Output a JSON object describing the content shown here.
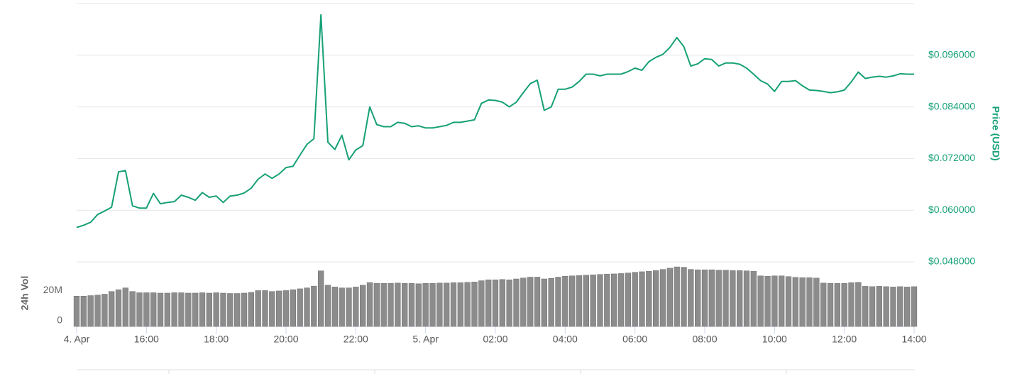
{
  "chart_data": [
    {
      "type": "line",
      "y_label": "Price (USD)",
      "xlim": [
        0,
        24
      ],
      "x": [
        0,
        0.2,
        0.4,
        0.6,
        0.8,
        1,
        1.2,
        1.4,
        1.6,
        1.8,
        2,
        2.2,
        2.4,
        2.6,
        2.8,
        3,
        3.2,
        3.4,
        3.6,
        3.8,
        4,
        4.2,
        4.4,
        4.6,
        4.8,
        5,
        5.2,
        5.4,
        5.6,
        5.8,
        6,
        6.2,
        6.4,
        6.6,
        6.8,
        7,
        7.2,
        7.4,
        7.6,
        7.8,
        8,
        8.2,
        8.4,
        8.6,
        8.8,
        9,
        9.2,
        9.4,
        9.6,
        9.8,
        10,
        10.2,
        10.4,
        10.6,
        10.8,
        11,
        11.2,
        11.4,
        11.6,
        11.8,
        12,
        12.2,
        12.4,
        12.6,
        12.8,
        13,
        13.2,
        13.4,
        13.6,
        13.8,
        14,
        14.2,
        14.4,
        14.6,
        14.8,
        15,
        15.2,
        15.4,
        15.6,
        15.8,
        16,
        16.2,
        16.4,
        16.6,
        16.8,
        17,
        17.2,
        17.4,
        17.6,
        17.8,
        18,
        18.2,
        18.4,
        18.6,
        18.8,
        19,
        19.2,
        19.4,
        19.6,
        19.8,
        20,
        20.2,
        20.4,
        20.6,
        20.8,
        21,
        21.2,
        21.4,
        21.6,
        21.8,
        22,
        22.2,
        22.4,
        22.6,
        22.8,
        23,
        23.2,
        23.4,
        23.6,
        23.8,
        24
      ],
      "series": [
        {
          "name": "Price",
          "color": "#16a076",
          "values": [
            0.056,
            0.0565,
            0.0572,
            0.059,
            0.0598,
            0.0607,
            0.0689,
            0.0692,
            0.061,
            0.0605,
            0.0605,
            0.0639,
            0.0615,
            0.0618,
            0.062,
            0.0635,
            0.063,
            0.0623,
            0.0641,
            0.063,
            0.0633,
            0.0618,
            0.0633,
            0.0635,
            0.064,
            0.0651,
            0.0672,
            0.0684,
            0.0674,
            0.0684,
            0.0699,
            0.0702,
            0.0728,
            0.0753,
            0.0766,
            0.1054,
            0.0758,
            0.0741,
            0.0774,
            0.0717,
            0.074,
            0.075,
            0.084,
            0.0799,
            0.0794,
            0.0794,
            0.0804,
            0.0802,
            0.0794,
            0.0796,
            0.0791,
            0.0791,
            0.0794,
            0.0797,
            0.0804,
            0.0804,
            0.0807,
            0.081,
            0.0848,
            0.0856,
            0.0855,
            0.0851,
            0.084,
            0.0851,
            0.0873,
            0.0894,
            0.0902,
            0.0832,
            0.084,
            0.0881,
            0.0881,
            0.0886,
            0.0899,
            0.0916,
            0.0916,
            0.0912,
            0.0916,
            0.0916,
            0.0916,
            0.0922,
            0.093,
            0.0925,
            0.0945,
            0.0955,
            0.0962,
            0.0978,
            0.1001,
            0.098,
            0.0935,
            0.094,
            0.0952,
            0.095,
            0.0935,
            0.0942,
            0.0942,
            0.0939,
            0.093,
            0.0916,
            0.0901,
            0.0893,
            0.0876,
            0.0899,
            0.0899,
            0.0901,
            0.0889,
            0.0879,
            0.0878,
            0.0876,
            0.0873,
            0.0875,
            0.0879,
            0.0898,
            0.0921,
            0.0906,
            0.0909,
            0.0911,
            0.0909,
            0.0912,
            0.0917,
            0.0916,
            0.0916
          ]
        }
      ],
      "ylim": [
        0.048,
        0.108
      ],
      "yticks": [
        {
          "value": 0.048,
          "label": "$0.048000"
        },
        {
          "value": 0.06,
          "label": "$0.060000"
        },
        {
          "value": 0.072,
          "label": "$0.072000"
        },
        {
          "value": 0.084,
          "label": "$0.084000"
        },
        {
          "value": 0.096,
          "label": "$0.096000"
        }
      ],
      "grid": true
    },
    {
      "type": "bar",
      "y_label": "24h Vol",
      "xlim": [
        0,
        24
      ],
      "x": [
        0,
        0.2,
        0.4,
        0.6,
        0.8,
        1,
        1.2,
        1.4,
        1.6,
        1.8,
        2,
        2.2,
        2.4,
        2.6,
        2.8,
        3,
        3.2,
        3.4,
        3.6,
        3.8,
        4,
        4.2,
        4.4,
        4.6,
        4.8,
        5,
        5.2,
        5.4,
        5.6,
        5.8,
        6,
        6.2,
        6.4,
        6.6,
        6.8,
        7,
        7.2,
        7.4,
        7.6,
        7.8,
        8,
        8.2,
        8.4,
        8.6,
        8.8,
        9,
        9.2,
        9.4,
        9.6,
        9.8,
        10,
        10.2,
        10.4,
        10.6,
        10.8,
        11,
        11.2,
        11.4,
        11.6,
        11.8,
        12,
        12.2,
        12.4,
        12.6,
        12.8,
        13,
        13.2,
        13.4,
        13.6,
        13.8,
        14,
        14.2,
        14.4,
        14.6,
        14.8,
        15,
        15.2,
        15.4,
        15.6,
        15.8,
        16,
        16.2,
        16.4,
        16.6,
        16.8,
        17,
        17.2,
        17.4,
        17.6,
        17.8,
        18,
        18.2,
        18.4,
        18.6,
        18.8,
        19,
        19.2,
        19.4,
        19.6,
        19.8,
        20,
        20.2,
        20.4,
        20.6,
        20.8,
        21,
        21.2,
        21.4,
        21.6,
        21.8,
        22,
        22.2,
        22.4,
        22.6,
        22.8,
        23,
        23.2,
        23.4,
        23.6,
        23.8,
        24
      ],
      "series": [
        {
          "name": "24h Vol",
          "color": "#8c8c8c",
          "values": [
            16900000,
            16900000,
            17200000,
            17500000,
            18000000,
            19500000,
            20500000,
            21500000,
            19500000,
            18800000,
            18800000,
            18800000,
            18600000,
            18600000,
            18800000,
            18800000,
            18600000,
            18600000,
            18800000,
            18600000,
            18800000,
            18600000,
            18400000,
            18400000,
            18600000,
            19000000,
            20000000,
            20000000,
            19500000,
            19800000,
            20000000,
            20500000,
            21000000,
            21500000,
            22500000,
            31000000,
            23000000,
            22000000,
            21500000,
            21500000,
            22000000,
            23000000,
            24500000,
            24000000,
            24000000,
            24000000,
            24200000,
            24000000,
            24000000,
            23800000,
            24000000,
            24000000,
            24200000,
            24200000,
            24400000,
            24400000,
            24600000,
            24800000,
            25500000,
            26000000,
            26000000,
            26200000,
            26000000,
            26500000,
            27000000,
            27500000,
            27500000,
            26500000,
            26800000,
            27500000,
            28000000,
            28200000,
            28400000,
            28600000,
            28800000,
            29000000,
            29200000,
            29300000,
            29500000,
            29800000,
            30200000,
            30500000,
            30800000,
            31200000,
            31800000,
            32500000,
            33200000,
            33000000,
            31800000,
            31600000,
            31600000,
            31600000,
            31400000,
            31400000,
            31200000,
            31200000,
            31000000,
            30800000,
            28200000,
            28000000,
            28200000,
            28200000,
            27800000,
            27400000,
            27200000,
            27200000,
            27000000,
            24200000,
            24000000,
            24000000,
            24000000,
            24400000,
            24600000,
            22400000,
            22200000,
            22400000,
            22200000,
            22000000,
            22200000,
            22000000,
            22200000
          ]
        }
      ],
      "ylim": [
        0,
        36000000
      ],
      "yticks": [
        0,
        {
          "value": 20000000,
          "label": "20M"
        }
      ],
      "xticks": [
        {
          "value": 0,
          "label": "4. Apr"
        },
        {
          "value": 2,
          "label": "16:00"
        },
        {
          "value": 4,
          "label": "18:00"
        },
        {
          "value": 6,
          "label": "20:00"
        },
        {
          "value": 8,
          "label": "22:00"
        },
        {
          "value": 10,
          "label": "5. Apr"
        },
        {
          "value": 12,
          "label": "02:00"
        },
        {
          "value": 14,
          "label": "04:00"
        },
        {
          "value": 16,
          "label": "06:00"
        },
        {
          "value": 18,
          "label": "08:00"
        },
        {
          "value": 20,
          "label": "10:00"
        },
        {
          "value": 22,
          "label": "12:00"
        },
        {
          "value": 24,
          "label": "14:00"
        }
      ]
    }
  ]
}
